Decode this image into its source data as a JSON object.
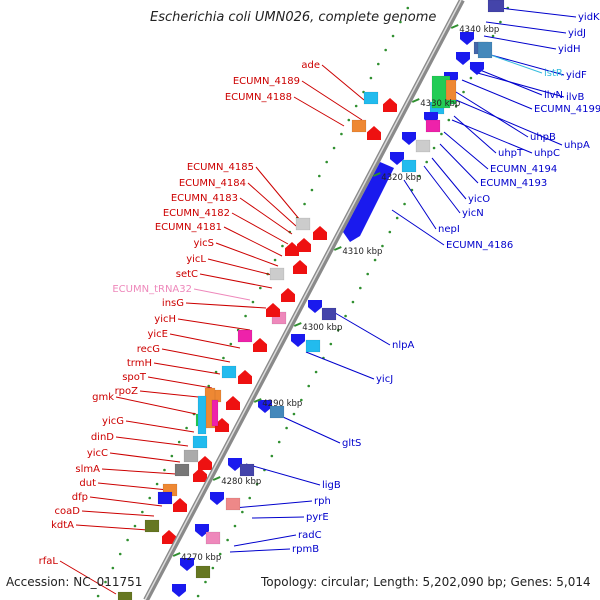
{
  "title": "Escherichia coli UMN026, complete genome",
  "footer": {
    "accession": "Accession: NC_011751",
    "summary": "Topology: circular; Length: 5,202,090 bp; Genes: 5,014"
  },
  "colors": {
    "forward_label": "#cc0000",
    "reverse_label": "#0000cc",
    "trna_label": "#ee88bb",
    "insertion_label": "#33bbdd",
    "backbone": "#888888",
    "tick": "#2f8f2f",
    "red_feature": "#ee1111",
    "blue_feature": "#1a1aee"
  },
  "kbp_ticks": [
    {
      "id": "t4340",
      "label": "4340 kbp"
    },
    {
      "id": "t4330",
      "label": "4330 kbp"
    },
    {
      "id": "t4320",
      "label": "4320 kbp"
    },
    {
      "id": "t4310",
      "label": "4310 kbp"
    },
    {
      "id": "t4300",
      "label": "4300 kbp"
    },
    {
      "id": "t4290",
      "label": "4290 kbp"
    },
    {
      "id": "t4280",
      "label": "4280 kbp"
    },
    {
      "id": "t4270",
      "label": "4270 kbp"
    }
  ],
  "left_labels": [
    {
      "id": "ade",
      "text": "ade",
      "color": "#cc0000"
    },
    {
      "id": "ecumn4189",
      "text": "ECUMN_4189",
      "color": "#cc0000"
    },
    {
      "id": "ecumn4188",
      "text": "ECUMN_4188",
      "color": "#cc0000"
    },
    {
      "id": "ecumn4185",
      "text": "ECUMN_4185",
      "color": "#cc0000"
    },
    {
      "id": "ecumn4184",
      "text": "ECUMN_4184",
      "color": "#cc0000"
    },
    {
      "id": "ecumn4183",
      "text": "ECUMN_4183",
      "color": "#cc0000"
    },
    {
      "id": "ecumn4182",
      "text": "ECUMN_4182",
      "color": "#cc0000"
    },
    {
      "id": "ecumn4181",
      "text": "ECUMN_4181",
      "color": "#cc0000"
    },
    {
      "id": "yics",
      "text": "yicS",
      "color": "#cc0000"
    },
    {
      "id": "yicl",
      "text": "yicL",
      "color": "#cc0000"
    },
    {
      "id": "setc",
      "text": "setC",
      "color": "#cc0000"
    },
    {
      "id": "trna32",
      "text": "ECUMN_tRNA32",
      "color": "#ee88bb"
    },
    {
      "id": "insg",
      "text": "insG",
      "color": "#cc0000"
    },
    {
      "id": "yich",
      "text": "yicH",
      "color": "#cc0000"
    },
    {
      "id": "yice",
      "text": "yicE",
      "color": "#cc0000"
    },
    {
      "id": "recg",
      "text": "recG",
      "color": "#cc0000"
    },
    {
      "id": "trmh",
      "text": "trmH",
      "color": "#cc0000"
    },
    {
      "id": "spot",
      "text": "spoT",
      "color": "#cc0000"
    },
    {
      "id": "rpoz",
      "text": "rpoZ",
      "color": "#cc0000"
    },
    {
      "id": "gmk",
      "text": "gmk",
      "color": "#cc0000"
    },
    {
      "id": "yicg",
      "text": "yicG",
      "color": "#cc0000"
    },
    {
      "id": "dind",
      "text": "dinD",
      "color": "#cc0000"
    },
    {
      "id": "yicc",
      "text": "yicC",
      "color": "#cc0000"
    },
    {
      "id": "slma",
      "text": "slmA",
      "color": "#cc0000"
    },
    {
      "id": "dut",
      "text": "dut",
      "color": "#cc0000"
    },
    {
      "id": "dfp",
      "text": "dfp",
      "color": "#cc0000"
    },
    {
      "id": "coad",
      "text": "coaD",
      "color": "#cc0000"
    },
    {
      "id": "kdta",
      "text": "kdtA",
      "color": "#cc0000"
    },
    {
      "id": "rfal",
      "text": "rfaL",
      "color": "#cc0000"
    }
  ],
  "right_labels": [
    {
      "id": "yidk",
      "text": "yidK",
      "color": "#0000cc"
    },
    {
      "id": "yidj",
      "text": "yidJ",
      "color": "#0000cc"
    },
    {
      "id": "yidh",
      "text": "yidH",
      "color": "#0000cc"
    },
    {
      "id": "yidf",
      "text": "yidF",
      "color": "#0000cc"
    },
    {
      "id": "istr",
      "text": "istR",
      "color": "#33bbdd"
    },
    {
      "id": "ilvn",
      "text": "ilvN",
      "color": "#0000cc"
    },
    {
      "id": "ilvb",
      "text": "ilvB",
      "color": "#0000cc"
    },
    {
      "id": "ecumn4199",
      "text": "ECUMN_4199",
      "color": "#0000cc"
    },
    {
      "id": "uhpb",
      "text": "uhpB",
      "color": "#0000cc"
    },
    {
      "id": "uhpa",
      "text": "uhpA",
      "color": "#0000cc"
    },
    {
      "id": "uhpt",
      "text": "uhpT",
      "color": "#0000cc"
    },
    {
      "id": "uhpc",
      "text": "uhpC",
      "color": "#0000cc"
    },
    {
      "id": "ecumn4194",
      "text": "ECUMN_4194",
      "color": "#0000cc"
    },
    {
      "id": "ecumn4193",
      "text": "ECUMN_4193",
      "color": "#0000cc"
    },
    {
      "id": "yico",
      "text": "yicO",
      "color": "#0000cc"
    },
    {
      "id": "yicn",
      "text": "yicN",
      "color": "#0000cc"
    },
    {
      "id": "nepi",
      "text": "nepI",
      "color": "#0000cc"
    },
    {
      "id": "ecumn4186",
      "text": "ECUMN_4186",
      "color": "#0000cc"
    },
    {
      "id": "nlpa",
      "text": "nlpA",
      "color": "#0000cc"
    },
    {
      "id": "yicj",
      "text": "yicJ",
      "color": "#0000cc"
    },
    {
      "id": "glts",
      "text": "gltS",
      "color": "#0000cc"
    },
    {
      "id": "ligb",
      "text": "ligB",
      "color": "#0000cc"
    },
    {
      "id": "rph",
      "text": "rph",
      "color": "#0000cc"
    },
    {
      "id": "pyre",
      "text": "pyrE",
      "color": "#0000cc"
    },
    {
      "id": "radc",
      "text": "radC",
      "color": "#0000cc"
    },
    {
      "id": "rpmb",
      "text": "rpmB",
      "color": "#0000cc"
    }
  ]
}
